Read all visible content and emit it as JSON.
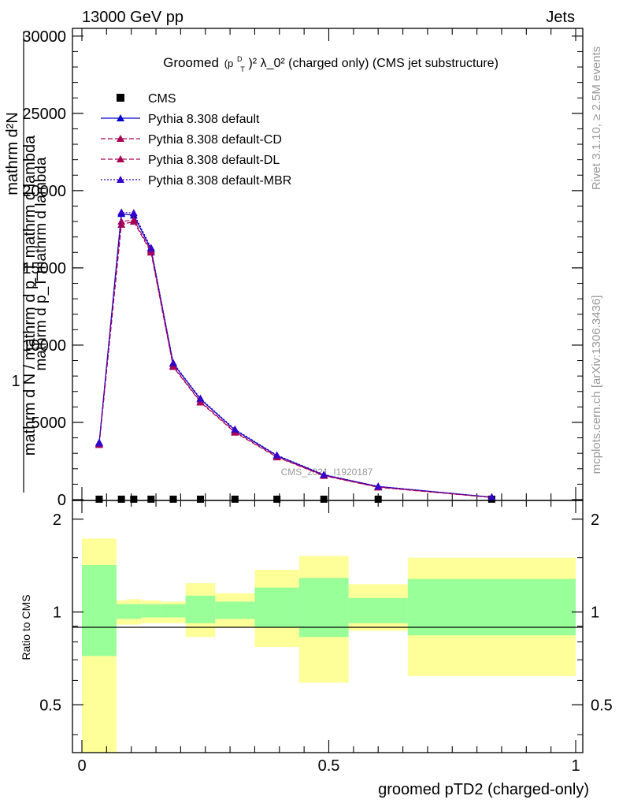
{
  "header": {
    "left": "13000 GeV pp",
    "right": "Jets"
  },
  "side_labels": {
    "rivet": "Rivet 3.1.10, ≥ 2.5M events",
    "mcplots": "mcplots.cern.ch [arXiv:1306.3436]"
  },
  "watermark": "CMS_2021_I1920187",
  "chart_data": [
    {
      "type": "line",
      "title_prefix": "Groomed",
      "title_formula": "(p",
      "title_sub": "T",
      "title_sup": "D",
      "title_tail": ")² λ_0²  (charged only) (CMS jet substructure)",
      "ylabel_top": "1",
      "ylabel_a": "mathrm d N / mathrm d p_T mathrm d lambda",
      "ylabel_b": "mathrm d²N",
      "ylabel_c": "mathrm d p_T  mathrm d lambda",
      "ylim": [
        0,
        30500
      ],
      "xlim": [
        0,
        1
      ],
      "yticks": [
        0,
        5000,
        10000,
        15000,
        20000,
        25000,
        30000
      ],
      "ytick_labels": [
        "0",
        "5000",
        "10000",
        "15000",
        "20000",
        "25000",
        "30000"
      ],
      "legend_position": "top-left",
      "bin_edges": [
        0.0,
        0.07,
        0.09,
        0.12,
        0.16,
        0.21,
        0.27,
        0.35,
        0.44,
        0.54,
        0.66,
        1.0
      ],
      "bin_centers": [
        0.035,
        0.08,
        0.105,
        0.14,
        0.185,
        0.24,
        0.31,
        0.395,
        0.49,
        0.6,
        0.83
      ],
      "series": [
        {
          "name": "CMS",
          "color": "#000000",
          "style": "marker",
          "values": [
            30,
            30,
            30,
            30,
            30,
            30,
            30,
            30,
            30,
            30,
            30
          ]
        },
        {
          "name": "Pythia 8.308 default",
          "color": "#0000cc",
          "style": "solid",
          "values": [
            3700,
            18500,
            18400,
            16200,
            8800,
            6500,
            4500,
            2850,
            1600,
            850,
            160
          ]
        },
        {
          "name": "Pythia 8.308 default-CD",
          "color": "#aa0055",
          "style": "dashed",
          "values": [
            3550,
            17800,
            18000,
            16000,
            8600,
            6300,
            4350,
            2750,
            1550,
            800,
            140
          ]
        },
        {
          "name": "Pythia 8.308 default-DL",
          "color": "#aa0055",
          "style": "dashed",
          "values": [
            3600,
            18000,
            18100,
            16100,
            8650,
            6350,
            4400,
            2780,
            1570,
            820,
            150
          ]
        },
        {
          "name": "Pythia 8.308 default-MBR",
          "color": "#3300cc",
          "style": "dotted",
          "values": [
            3650,
            18600,
            18550,
            16300,
            8850,
            6550,
            4550,
            2880,
            1620,
            860,
            165
          ]
        }
      ]
    },
    {
      "type": "area",
      "ylabel": "Ratio to CMS",
      "xlabel": "groomed pTD2 (charged-only)",
      "xlim": [
        0,
        1
      ],
      "ylim": [
        0.35,
        2.3
      ],
      "yticks": [
        0.5,
        1,
        2
      ],
      "ytick_labels": [
        "0.5",
        "1",
        "2"
      ],
      "xticks": [
        0,
        0.5,
        1
      ],
      "xtick_labels": [
        "0",
        "0.5",
        "1"
      ],
      "bin_edges": [
        0.0,
        0.07,
        0.09,
        0.12,
        0.16,
        0.21,
        0.27,
        0.35,
        0.44,
        0.54,
        0.66,
        1.0
      ],
      "band_inner": {
        "color": "#99ff99",
        "low": [
          0.72,
          0.95,
          0.95,
          0.96,
          0.96,
          0.92,
          0.95,
          0.89,
          0.83,
          0.92,
          0.84
        ],
        "high": [
          1.42,
          1.06,
          1.06,
          1.06,
          1.06,
          1.13,
          1.08,
          1.2,
          1.29,
          1.11,
          1.28
        ]
      },
      "band_outer": {
        "color": "#ffff99",
        "low": [
          0.35,
          0.91,
          0.91,
          0.92,
          0.92,
          0.83,
          0.89,
          0.77,
          0.59,
          0.87,
          0.62
        ],
        "high": [
          1.73,
          1.09,
          1.1,
          1.09,
          1.08,
          1.24,
          1.15,
          1.37,
          1.52,
          1.23,
          1.5
        ]
      },
      "reference": 1
    }
  ]
}
